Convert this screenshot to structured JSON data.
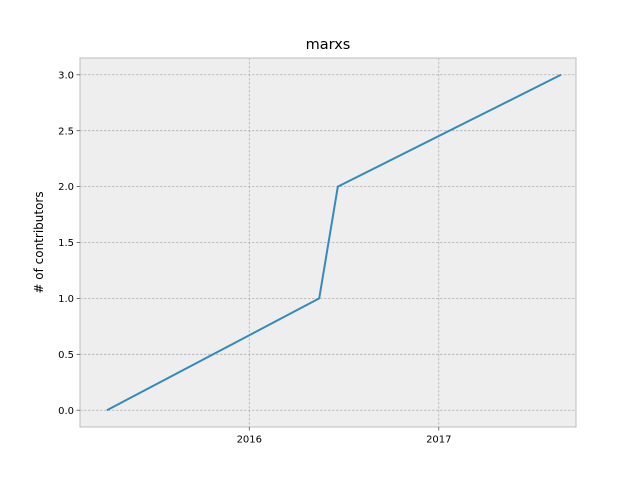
{
  "chart_data": {
    "type": "line",
    "title": "marxs",
    "xlabel": "",
    "ylabel": "# of contributors",
    "x": [
      "2015-04-01",
      "2016-05-15",
      "2016-06-20",
      "2017-08-25"
    ],
    "series": [
      {
        "values": [
          0,
          1,
          2,
          3
        ]
      }
    ],
    "xlim": [
      "2015-02-08",
      "2017-09-23"
    ],
    "ylim": [
      -0.15,
      3.15
    ],
    "xticks": [
      {
        "date": "2016-01-01",
        "label": "2016"
      },
      {
        "date": "2017-01-01",
        "label": "2017"
      }
    ],
    "yticks": [
      {
        "value": 0.0,
        "label": "0.0"
      },
      {
        "value": 0.5,
        "label": "0.5"
      },
      {
        "value": 1.0,
        "label": "1.0"
      },
      {
        "value": 1.5,
        "label": "1.5"
      },
      {
        "value": 2.0,
        "label": "2.0"
      },
      {
        "value": 2.5,
        "label": "2.5"
      },
      {
        "value": 3.0,
        "label": "3.0"
      }
    ],
    "grid": true,
    "colors": {
      "line": "#348abd",
      "plot_background": "#eeeeee",
      "grid": "#b2b2b2",
      "frame": "#bcbcbc"
    }
  }
}
